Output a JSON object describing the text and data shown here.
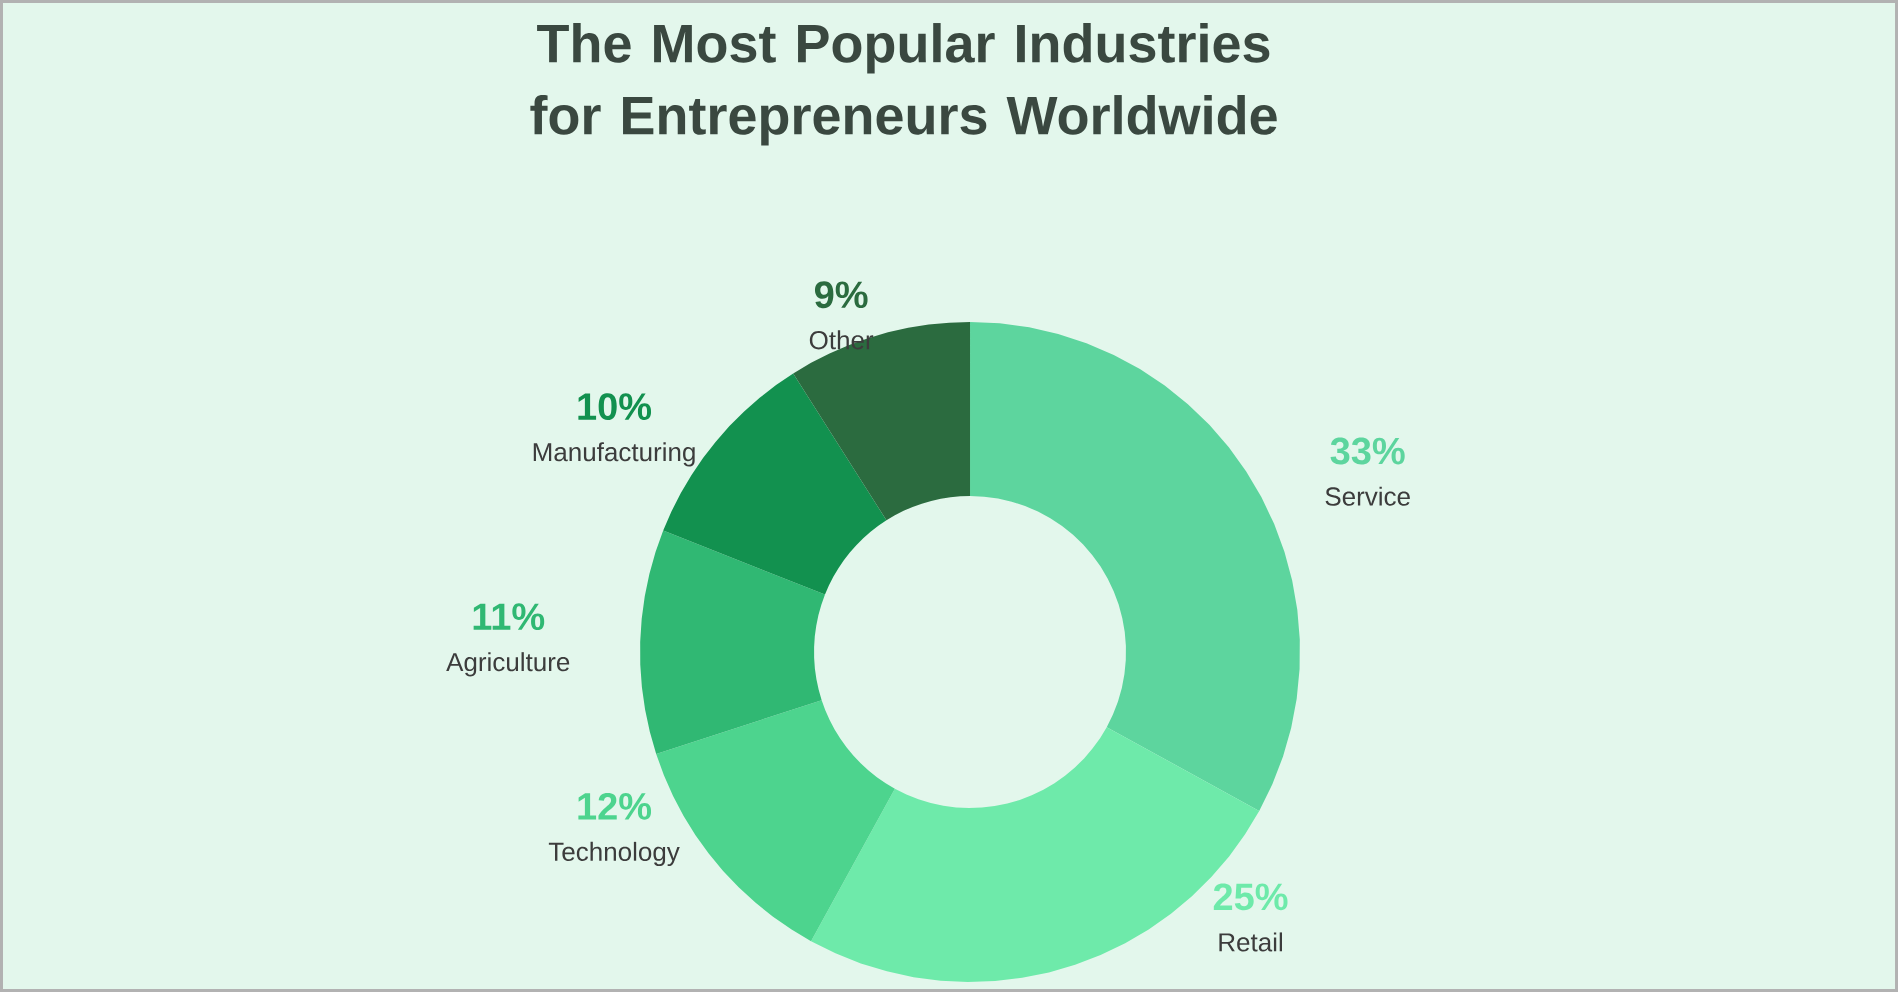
{
  "chart_data": {
    "type": "donut",
    "title": "The Most Popular Industries for Entrepreneurs Worldwide",
    "categories": [
      "Service",
      "Retail",
      "Technology",
      "Agriculture",
      "Manufacturing",
      "Other"
    ],
    "values": [
      33,
      25,
      12,
      11,
      10,
      9
    ],
    "value_labels": [
      "33%",
      "25%",
      "12%",
      "11%",
      "10%",
      "9%"
    ],
    "colors": [
      "#5dd59e",
      "#6eeaaa",
      "#4dd48e",
      "#30b873",
      "#12914f",
      "#2b6b3f"
    ]
  }
}
